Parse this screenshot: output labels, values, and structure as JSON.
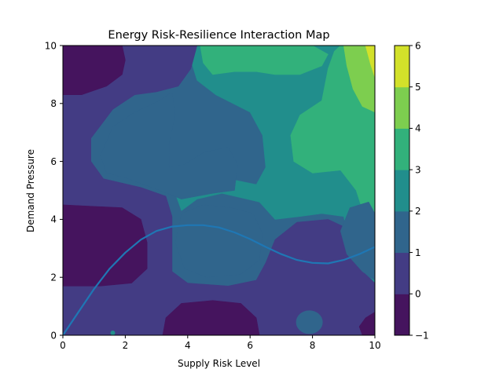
{
  "chart_data": {
    "type": "contourf",
    "title": "Energy Risk-Resilience Interaction Map",
    "xlabel": "Supply Risk Level",
    "ylabel": "Demand Pressure",
    "xlim": [
      0,
      10
    ],
    "ylim": [
      0,
      10
    ],
    "x_ticks": [
      "0",
      "2",
      "4",
      "6",
      "8",
      "10"
    ],
    "y_ticks": [
      "0",
      "2",
      "4",
      "6",
      "8",
      "10"
    ],
    "grid": false,
    "colorbar": {
      "levels": [
        -1,
        0,
        1,
        2,
        3,
        4,
        5,
        6
      ],
      "tick_labels": [
        "−1",
        "0",
        "1",
        "2",
        "3",
        "4",
        "5",
        "6"
      ],
      "colors": [
        "#45145e",
        "#433c84",
        "#30658c",
        "#218e8c",
        "#32b17b",
        "#7dce4f",
        "#d3e12a"
      ]
    },
    "contour_regions": [
      {
        "level": -1,
        "description": "top-left corner",
        "center": [
          1.0,
          9.2
        ]
      },
      {
        "level": -1,
        "description": "left middle",
        "center": [
          1.2,
          3.2
        ]
      },
      {
        "level": -1,
        "description": "bottom center",
        "center": [
          4.8,
          0.4
        ]
      },
      {
        "level": -1,
        "description": "bottom-right corner",
        "center": [
          10.0,
          0.2
        ]
      },
      {
        "level": 1,
        "description": "left hump",
        "center": [
          2.5,
          6.5
        ]
      },
      {
        "level": 1,
        "description": "center",
        "center": [
          5.2,
          2.8
        ]
      },
      {
        "level": 1,
        "description": "right lower",
        "center": [
          9.5,
          3.5
        ]
      },
      {
        "level": 1,
        "description": "small blob",
        "center": [
          7.9,
          0.4
        ]
      },
      {
        "level": 2,
        "description": "upper band",
        "center": [
          7.0,
          8.0
        ]
      },
      {
        "level": 3,
        "description": "top center",
        "center": [
          7.0,
          9.7
        ]
      },
      {
        "level": 3,
        "description": "right middle",
        "center": [
          9.0,
          6.5
        ]
      },
      {
        "level": 4,
        "description": "top right",
        "center": [
          9.6,
          9.2
        ]
      },
      {
        "level": 5,
        "description": "top-right corner",
        "center": [
          9.95,
          9.85
        ]
      }
    ],
    "series": [
      {
        "type": "line",
        "color": "#1f77b4",
        "x": [
          0,
          0.5,
          1,
          1.5,
          2,
          2.5,
          3,
          3.5,
          4,
          4.5,
          5,
          5.5,
          6,
          6.5,
          7,
          7.5,
          8,
          8.5,
          9,
          9.5,
          10
        ],
        "y": [
          0,
          0.8,
          1.6,
          2.3,
          2.85,
          3.3,
          3.6,
          3.75,
          3.8,
          3.8,
          3.72,
          3.55,
          3.32,
          3.05,
          2.8,
          2.6,
          2.5,
          2.48,
          2.6,
          2.8,
          3.05
        ]
      }
    ]
  }
}
